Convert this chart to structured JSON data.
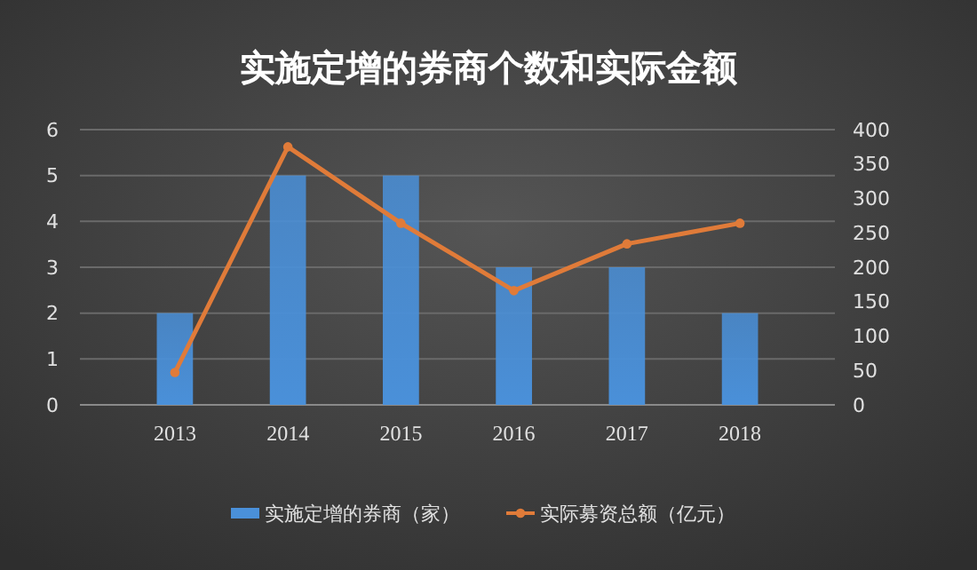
{
  "chart_data": {
    "type": "bar",
    "title": "实施定增的券商个数和实际金额",
    "categories": [
      "2013",
      "2014",
      "2015",
      "2016",
      "2017",
      "2018"
    ],
    "series": [
      {
        "name": "实施定增的券商（家）",
        "color": "#4a90d9",
        "values": [
          2,
          5,
          5,
          3,
          3,
          2
        ]
      },
      {
        "name": "实际募资总额（亿元）",
        "type": "line",
        "axis": "y2",
        "color": "#e07b39",
        "values": [
          47,
          375,
          264,
          166,
          234,
          264
        ]
      }
    ],
    "ylim": [
      0,
      6
    ],
    "yticks": [
      0,
      1,
      2,
      3,
      4,
      5,
      6
    ],
    "y2lim": [
      0,
      400
    ],
    "y2ticks": [
      0,
      50,
      100,
      150,
      200,
      250,
      300,
      350,
      400
    ],
    "grid": "y",
    "legend": "bottom",
    "marker": "circle"
  }
}
